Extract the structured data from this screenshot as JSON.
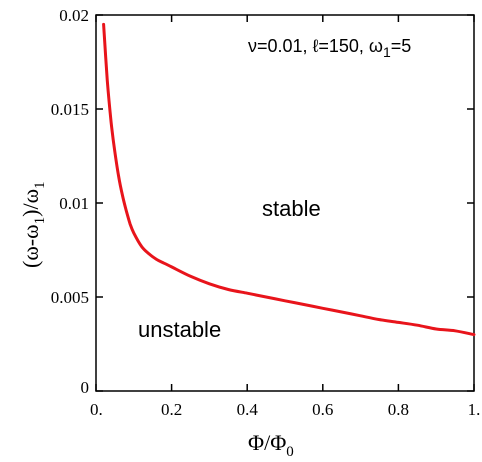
{
  "chart_data": {
    "type": "line",
    "title": "",
    "xlabel": "Φ/Φ0",
    "ylabel": "(ω-ω1)/ω1",
    "xlim": [
      0,
      1
    ],
    "ylim": [
      0,
      0.02
    ],
    "x_ticks": [
      "0.",
      "0.2",
      "0.4",
      "0.6",
      "0.8",
      "1."
    ],
    "x_tick_values": [
      0,
      0.2,
      0.4,
      0.6,
      0.8,
      1.0
    ],
    "y_ticks": [
      "0",
      "0.005",
      "0.01",
      "0.015",
      "0.02"
    ],
    "y_tick_values": [
      0,
      0.005,
      0.01,
      0.015,
      0.02
    ],
    "grid": false,
    "legend": "none",
    "series": [
      {
        "color": "#e8141b",
        "x": [
          0.02,
          0.03,
          0.04,
          0.05,
          0.06,
          0.07,
          0.08,
          0.09,
          0.1,
          0.12,
          0.14,
          0.16,
          0.18,
          0.2,
          0.25,
          0.3,
          0.35,
          0.4,
          0.45,
          0.5,
          0.55,
          0.6,
          0.65,
          0.7,
          0.75,
          0.8,
          0.85,
          0.9,
          0.95,
          1.0
        ],
        "y": [
          0.0195,
          0.0165,
          0.0143,
          0.0127,
          0.0114,
          0.0104,
          0.0096,
          0.0089,
          0.0084,
          0.0077,
          0.0073,
          0.007,
          0.0068,
          0.0066,
          0.0061,
          0.0057,
          0.0054,
          0.0052,
          0.005,
          0.0048,
          0.0046,
          0.0044,
          0.0042,
          0.004,
          0.0038,
          0.00365,
          0.0035,
          0.0033,
          0.0032,
          0.003
        ]
      }
    ],
    "annotations": {
      "params": "ν=0.01, ℓ=150, ω1=5",
      "stable": "stable",
      "unstable": "unstable"
    }
  },
  "labels": {
    "ylabel_open": "(ω-ω",
    "ylabel_sub1": "1",
    "ylabel_mid": ")/ω",
    "ylabel_sub2": "1",
    "xlabel_main": "Φ/Φ",
    "xlabel_sub": "0",
    "params_pre": "ν=0.01, ℓ=150, ω",
    "params_sub": "1",
    "params_post": "=5",
    "stable": "stable",
    "unstable": "unstable"
  }
}
